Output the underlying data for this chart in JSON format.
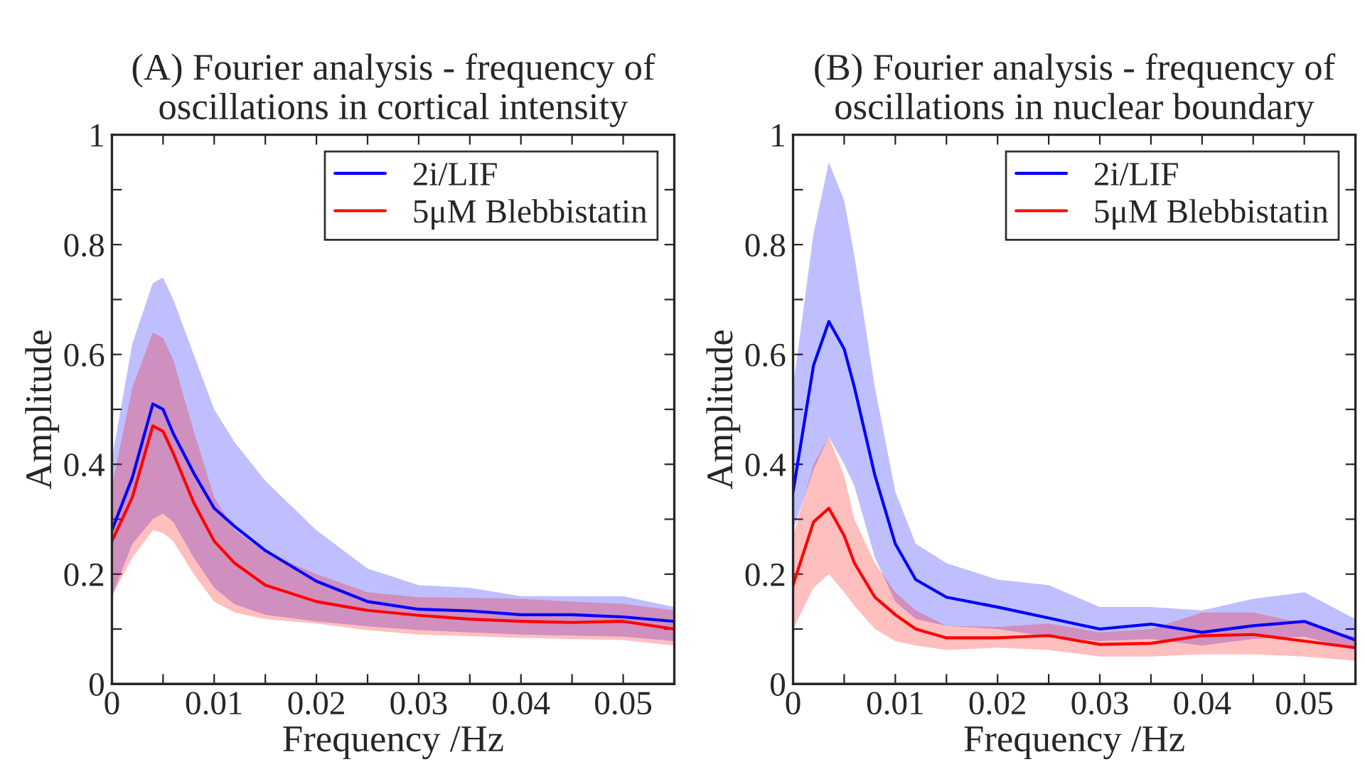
{
  "chart_data": [
    {
      "type": "line",
      "title": "(A) Fourier analysis - frequency of\noscillations in cortical intensity",
      "xlabel": "Frequency /Hz",
      "ylabel": "Amplitude",
      "x": [
        0,
        0.002,
        0.004,
        0.005,
        0.006,
        0.008,
        0.01,
        0.012,
        0.015,
        0.02,
        0.025,
        0.03,
        0.035,
        0.04,
        0.045,
        0.05,
        0.055
      ],
      "series": [
        {
          "name": "2i/LIF",
          "color": "#0000ff",
          "values": [
            0.28,
            0.376,
            0.51,
            0.5,
            0.456,
            0.384,
            0.32,
            0.287,
            0.243,
            0.187,
            0.15,
            0.136,
            0.133,
            0.126,
            0.126,
            0.122,
            0.114
          ],
          "lower": [
            0.16,
            0.255,
            0.3,
            0.31,
            0.295,
            0.23,
            0.175,
            0.145,
            0.126,
            0.114,
            0.105,
            0.098,
            0.094,
            0.09,
            0.088,
            0.086,
            0.078
          ],
          "upper": [
            0.41,
            0.62,
            0.73,
            0.74,
            0.7,
            0.6,
            0.5,
            0.44,
            0.37,
            0.28,
            0.21,
            0.18,
            0.175,
            0.16,
            0.16,
            0.16,
            0.14
          ]
        },
        {
          "name": "5μM Blebbistatin",
          "color": "#ff0000",
          "values": [
            0.26,
            0.34,
            0.47,
            0.46,
            0.42,
            0.33,
            0.26,
            0.22,
            0.18,
            0.15,
            0.134,
            0.125,
            0.118,
            0.114,
            0.112,
            0.114,
            0.1
          ],
          "lower": [
            0.16,
            0.23,
            0.28,
            0.275,
            0.26,
            0.2,
            0.15,
            0.13,
            0.118,
            0.11,
            0.098,
            0.09,
            0.087,
            0.084,
            0.082,
            0.08,
            0.07
          ],
          "upper": [
            0.36,
            0.54,
            0.64,
            0.63,
            0.59,
            0.46,
            0.34,
            0.28,
            0.24,
            0.2,
            0.167,
            0.158,
            0.157,
            0.155,
            0.15,
            0.146,
            0.134
          ]
        }
      ],
      "xlim": [
        0,
        0.055
      ],
      "xticks": [
        0,
        {
          "value": 0.005,
          "label": null
        },
        0.01,
        {
          "value": 0.015,
          "label": null
        },
        0.02,
        {
          "value": 0.025,
          "label": null
        },
        0.03,
        {
          "value": 0.035,
          "label": null
        },
        0.04,
        {
          "value": 0.045,
          "label": null
        },
        0.05
      ],
      "ylim": [
        0,
        1
      ],
      "yticks": [
        0,
        {
          "value": 0.1,
          "label": null
        },
        0.2,
        {
          "value": 0.3,
          "label": null
        },
        0.4,
        {
          "value": 0.5,
          "label": null
        },
        0.6,
        {
          "value": 0.7,
          "label": null
        },
        0.8,
        {
          "value": 0.9,
          "label": null
        },
        1
      ],
      "legend": "top right",
      "grid": false,
      "line_style": "solid"
    },
    {
      "type": "line",
      "title": "(B) Fourier analysis - frequency of\noscillations in nuclear boundary",
      "xlabel": "Frequency /Hz",
      "ylabel": "Amplitude",
      "x": [
        0,
        0.002,
        0.0035,
        0.005,
        0.006,
        0.008,
        0.01,
        0.012,
        0.015,
        0.02,
        0.025,
        0.03,
        0.035,
        0.04,
        0.045,
        0.05,
        0.055
      ],
      "series": [
        {
          "name": "2i/LIF",
          "color": "#0000ff",
          "values": [
            0.35,
            0.58,
            0.66,
            0.61,
            0.54,
            0.38,
            0.255,
            0.19,
            0.158,
            0.14,
            0.12,
            0.1,
            0.109,
            0.094,
            0.106,
            0.114,
            0.08
          ],
          "lower": [
            0.28,
            0.39,
            0.45,
            0.4,
            0.36,
            0.23,
            0.15,
            0.118,
            0.106,
            0.1,
            0.086,
            0.078,
            0.082,
            0.07,
            0.082,
            0.086,
            0.062
          ],
          "upper": [
            0.54,
            0.82,
            0.95,
            0.88,
            0.78,
            0.54,
            0.35,
            0.255,
            0.22,
            0.19,
            0.18,
            0.14,
            0.14,
            0.134,
            0.155,
            0.167,
            0.118
          ]
        },
        {
          "name": "5μM Blebbistatin",
          "color": "#ff0000",
          "values": [
            0.18,
            0.295,
            0.32,
            0.27,
            0.22,
            0.158,
            0.126,
            0.1,
            0.084,
            0.084,
            0.088,
            0.072,
            0.074,
            0.088,
            0.09,
            0.078,
            0.066
          ],
          "lower": [
            0.1,
            0.175,
            0.2,
            0.167,
            0.142,
            0.1,
            0.078,
            0.07,
            0.062,
            0.066,
            0.062,
            0.05,
            0.05,
            0.054,
            0.054,
            0.05,
            0.042
          ],
          "upper": [
            0.27,
            0.4,
            0.45,
            0.38,
            0.3,
            0.22,
            0.167,
            0.134,
            0.106,
            0.104,
            0.11,
            0.094,
            0.1,
            0.13,
            0.13,
            0.11,
            0.086
          ]
        }
      ],
      "xlim": [
        0,
        0.055
      ],
      "xticks": [
        0,
        {
          "value": 0.005,
          "label": null
        },
        0.01,
        {
          "value": 0.015,
          "label": null
        },
        0.02,
        {
          "value": 0.025,
          "label": null
        },
        0.03,
        {
          "value": 0.035,
          "label": null
        },
        0.04,
        {
          "value": 0.045,
          "label": null
        },
        0.05
      ],
      "ylim": [
        0,
        1
      ],
      "yticks": [
        0,
        {
          "value": 0.1,
          "label": null
        },
        0.2,
        {
          "value": 0.3,
          "label": null
        },
        0.4,
        {
          "value": 0.5,
          "label": null
        },
        0.6,
        {
          "value": 0.7,
          "label": null
        },
        0.8,
        {
          "value": 0.9,
          "label": null
        },
        1
      ],
      "legend": "top right",
      "grid": false,
      "line_style": "solid"
    }
  ]
}
